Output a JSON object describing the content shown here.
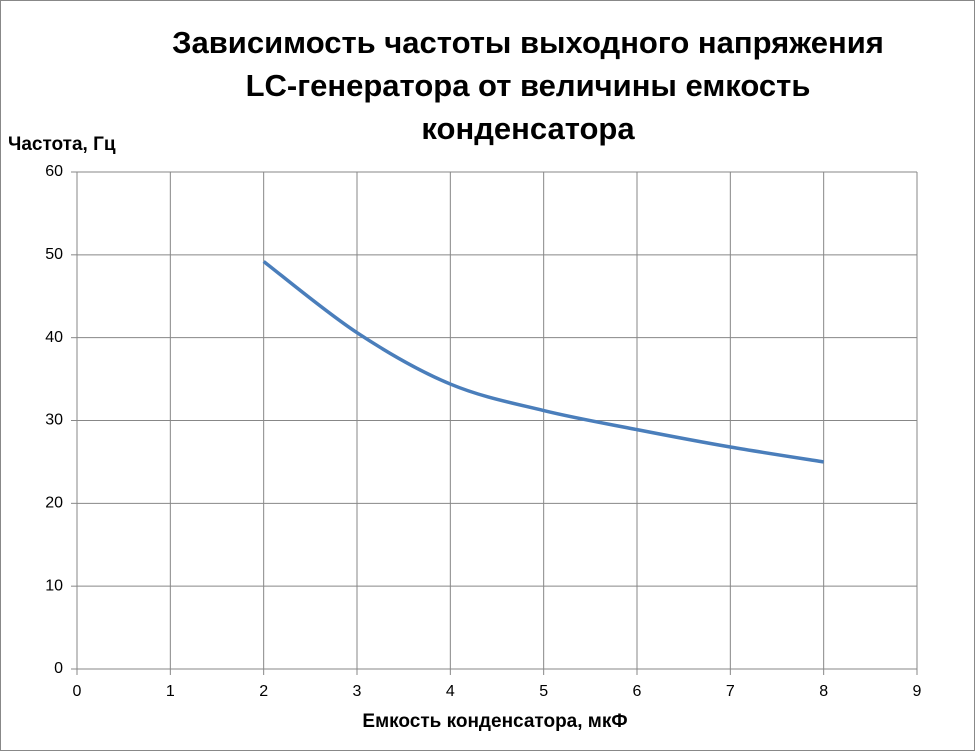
{
  "chart_data": {
    "type": "line",
    "title": [
      "Зависимость частоты выходного напряжения",
      "LC-генератора от величины емкость",
      "конденсатора"
    ],
    "x_label": "Емкость конденсатора, мкФ",
    "y_label": "Частота, Гц",
    "x": [
      2,
      3,
      4,
      5,
      6,
      7,
      8
    ],
    "series": [
      {
        "name": "Частота",
        "color": "#4a7ebb",
        "values": [
          49.2,
          40.6,
          34.4,
          31.2,
          28.9,
          26.8,
          25.0
        ]
      }
    ],
    "xlim": [
      0,
      9
    ],
    "xticks": [
      0,
      1,
      2,
      3,
      4,
      5,
      6,
      7,
      8,
      9
    ],
    "ylim": [
      0,
      60
    ],
    "yticks": [
      0,
      10,
      20,
      30,
      40,
      50,
      60
    ],
    "grid": true,
    "smooth": true
  }
}
